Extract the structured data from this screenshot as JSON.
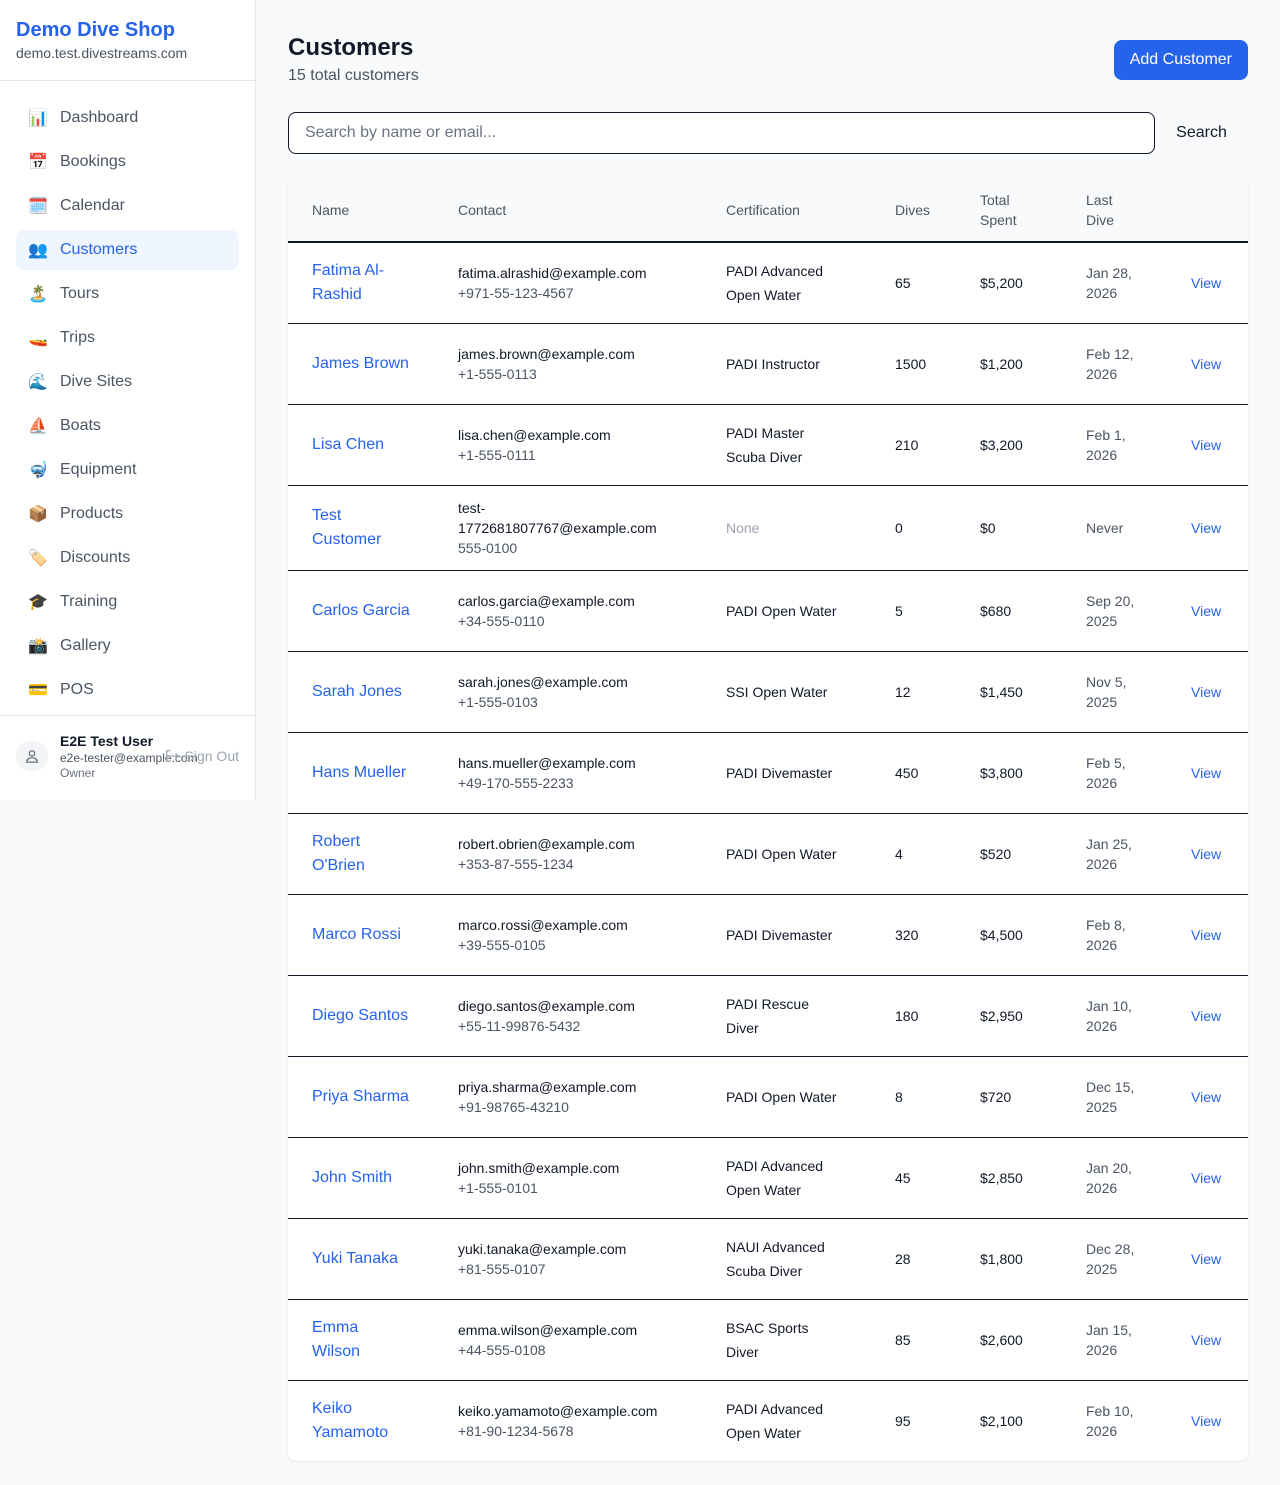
{
  "sidebar": {
    "shop_name": "Demo Dive Shop",
    "domain": "demo.test.divestreams.com",
    "items": [
      {
        "label": "Dashboard",
        "icon": "📊",
        "icon_name": "bar-chart-icon"
      },
      {
        "label": "Bookings",
        "icon": "📅",
        "icon_name": "calendar-date-icon"
      },
      {
        "label": "Calendar",
        "icon": "🗓️",
        "icon_name": "calendar-icon"
      },
      {
        "label": "Customers",
        "icon": "👥",
        "icon_name": "people-icon",
        "active": true
      },
      {
        "label": "Tours",
        "icon": "🏝️",
        "icon_name": "island-icon"
      },
      {
        "label": "Trips",
        "icon": "🚤",
        "icon_name": "speedboat-icon"
      },
      {
        "label": "Dive Sites",
        "icon": "🌊",
        "icon_name": "wave-icon"
      },
      {
        "label": "Boats",
        "icon": "⛵",
        "icon_name": "sailboat-icon"
      },
      {
        "label": "Equipment",
        "icon": "🤿",
        "icon_name": "diving-mask-icon"
      },
      {
        "label": "Products",
        "icon": "📦",
        "icon_name": "package-icon"
      },
      {
        "label": "Discounts",
        "icon": "🏷️",
        "icon_name": "tag-icon"
      },
      {
        "label": "Training",
        "icon": "🎓",
        "icon_name": "graduation-cap-icon"
      },
      {
        "label": "Gallery",
        "icon": "📸",
        "icon_name": "camera-icon"
      },
      {
        "label": "POS",
        "icon": "💳",
        "icon_name": "credit-card-icon"
      }
    ],
    "user": {
      "name": "E2E Test User",
      "email": "e2e-tester@example.com",
      "role": "Owner",
      "sign_out": "Sign Out"
    }
  },
  "header": {
    "title": "Customers",
    "subtitle": "15 total customers",
    "add_button": "Add Customer"
  },
  "search": {
    "placeholder": "Search by name or email...",
    "button": "Search"
  },
  "table": {
    "columns": [
      "Name",
      "Contact",
      "Certification",
      "Dives",
      "Total Spent",
      "Last Dive",
      ""
    ],
    "rows": [
      {
        "name": "Fatima Al-Rashid",
        "email": "fatima.alrashid@example.com",
        "phone": "+971-55-123-4567",
        "cert": "PADI Advanced Open Water",
        "dives": "65",
        "spent": "$5,200",
        "last": "Jan 28, 2026",
        "action": "View"
      },
      {
        "name": "James Brown",
        "email": "james.brown@example.com",
        "phone": "+1-555-0113",
        "cert": "PADI Instructor",
        "dives": "1500",
        "spent": "$1,200",
        "last": "Feb 12, 2026",
        "action": "View"
      },
      {
        "name": "Lisa Chen",
        "email": "lisa.chen@example.com",
        "phone": "+1-555-0111",
        "cert": "PADI Master Scuba Diver",
        "dives": "210",
        "spent": "$3,200",
        "last": "Feb 1, 2026",
        "action": "View"
      },
      {
        "name": "Test Customer",
        "email": "test-1772681807767@example.com",
        "phone": "555-0100",
        "cert": "None",
        "dives": "0",
        "spent": "$0",
        "last": "Never",
        "action": "View"
      },
      {
        "name": "Carlos Garcia",
        "email": "carlos.garcia@example.com",
        "phone": "+34-555-0110",
        "cert": "PADI Open Water",
        "dives": "5",
        "spent": "$680",
        "last": "Sep 20, 2025",
        "action": "View"
      },
      {
        "name": "Sarah Jones",
        "email": "sarah.jones@example.com",
        "phone": "+1-555-0103",
        "cert": "SSI Open Water",
        "dives": "12",
        "spent": "$1,450",
        "last": "Nov 5, 2025",
        "action": "View"
      },
      {
        "name": "Hans Mueller",
        "email": "hans.mueller@example.com",
        "phone": "+49-170-555-2233",
        "cert": "PADI Divemaster",
        "dives": "450",
        "spent": "$3,800",
        "last": "Feb 5, 2026",
        "action": "View"
      },
      {
        "name": "Robert O'Brien",
        "email": "robert.obrien@example.com",
        "phone": "+353-87-555-1234",
        "cert": "PADI Open Water",
        "dives": "4",
        "spent": "$520",
        "last": "Jan 25, 2026",
        "action": "View"
      },
      {
        "name": "Marco Rossi",
        "email": "marco.rossi@example.com",
        "phone": "+39-555-0105",
        "cert": "PADI Divemaster",
        "dives": "320",
        "spent": "$4,500",
        "last": "Feb 8, 2026",
        "action": "View"
      },
      {
        "name": "Diego Santos",
        "email": "diego.santos@example.com",
        "phone": "+55-11-99876-5432",
        "cert": "PADI Rescue Diver",
        "dives": "180",
        "spent": "$2,950",
        "last": "Jan 10, 2026",
        "action": "View"
      },
      {
        "name": "Priya Sharma",
        "email": "priya.sharma@example.com",
        "phone": "+91-98765-43210",
        "cert": "PADI Open Water",
        "dives": "8",
        "spent": "$720",
        "last": "Dec 15, 2025",
        "action": "View"
      },
      {
        "name": "John Smith",
        "email": "john.smith@example.com",
        "phone": "+1-555-0101",
        "cert": "PADI Advanced Open Water",
        "dives": "45",
        "spent": "$2,850",
        "last": "Jan 20, 2026",
        "action": "View"
      },
      {
        "name": "Yuki Tanaka",
        "email": "yuki.tanaka@example.com",
        "phone": "+81-555-0107",
        "cert": "NAUI Advanced Scuba Diver",
        "dives": "28",
        "spent": "$1,800",
        "last": "Dec 28, 2025",
        "action": "View"
      },
      {
        "name": "Emma Wilson",
        "email": "emma.wilson@example.com",
        "phone": "+44-555-0108",
        "cert": "BSAC Sports Diver",
        "dives": "85",
        "spent": "$2,600",
        "last": "Jan 15, 2026",
        "action": "View"
      },
      {
        "name": "Keiko Yamamoto",
        "email": "keiko.yamamoto@example.com",
        "phone": "+81-90-1234-5678",
        "cert": "PADI Advanced Open Water",
        "dives": "95",
        "spent": "$2,100",
        "last": "Feb 10, 2026",
        "action": "View"
      }
    ]
  },
  "colors": {
    "accent": "#2563eb",
    "active_bg": "#eff6ff"
  }
}
